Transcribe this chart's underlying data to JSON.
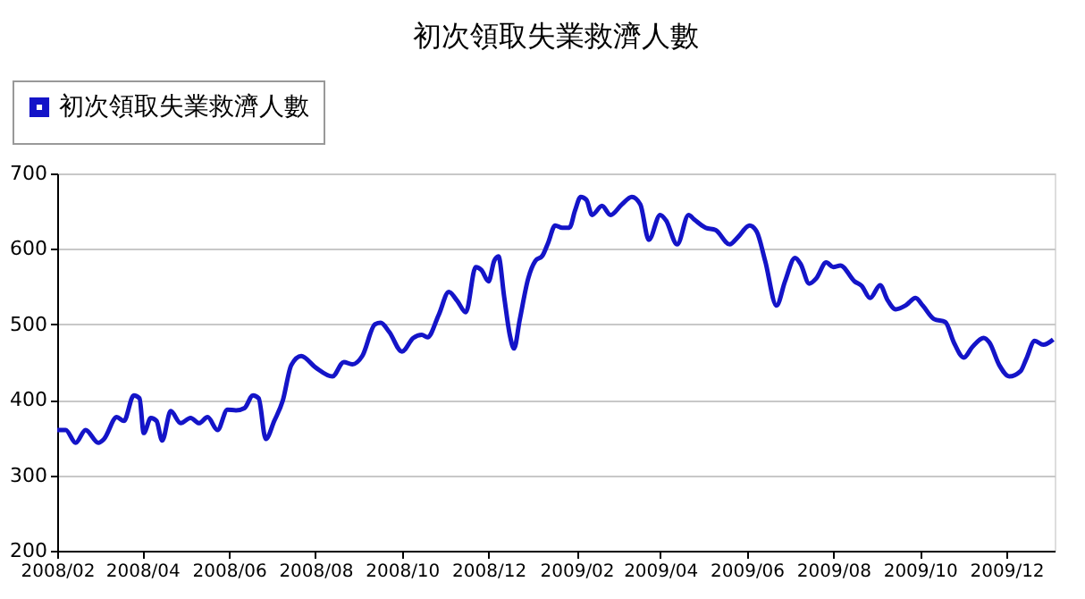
{
  "chart_data": {
    "type": "line",
    "title": "初次領取失業救濟人數",
    "x": [
      "2008-02-01",
      "2008-02-07",
      "2008-02-14",
      "2008-02-21",
      "2008-03-01",
      "2008-03-05",
      "2008-03-14",
      "2008-03-19",
      "2008-03-26",
      "2008-03-30",
      "2008-04-02",
      "2008-04-07",
      "2008-04-11",
      "2008-04-15",
      "2008-04-21",
      "2008-04-28",
      "2008-05-05",
      "2008-05-11",
      "2008-05-17",
      "2008-05-24",
      "2008-05-31",
      "2008-06-06",
      "2008-06-12",
      "2008-06-18",
      "2008-06-22",
      "2008-06-27",
      "2008-07-03",
      "2008-07-09",
      "2008-07-15",
      "2008-07-22",
      "2008-08-01",
      "2008-08-13",
      "2008-08-21",
      "2008-08-27",
      "2008-09-03",
      "2008-09-12",
      "2008-09-16",
      "2008-09-22",
      "2008-10-01",
      "2008-10-09",
      "2008-10-15",
      "2008-10-19",
      "2008-10-27",
      "2008-11-03",
      "2008-11-09",
      "2008-11-15",
      "2008-11-22",
      "2008-11-26",
      "2008-12-01",
      "2008-12-05",
      "2008-12-08",
      "2008-12-12",
      "2008-12-16",
      "2008-12-19",
      "2008-12-23",
      "2008-12-29",
      "2009-01-03",
      "2009-01-08",
      "2009-01-12",
      "2009-01-17",
      "2009-01-22",
      "2009-01-27",
      "2009-01-31",
      "2009-02-04",
      "2009-02-08",
      "2009-02-12",
      "2009-02-19",
      "2009-02-25",
      "2009-03-05",
      "2009-03-12",
      "2009-03-18",
      "2009-03-24",
      "2009-04-01",
      "2009-04-05",
      "2009-04-13",
      "2009-04-21",
      "2009-04-25",
      "2009-05-03",
      "2009-05-10",
      "2009-05-20",
      "2009-05-26",
      "2009-06-03",
      "2009-06-08",
      "2009-06-14",
      "2009-06-22",
      "2009-06-28",
      "2009-07-05",
      "2009-07-09",
      "2009-07-15",
      "2009-07-20",
      "2009-07-27",
      "2009-08-01",
      "2009-08-06",
      "2009-08-16",
      "2009-08-21",
      "2009-08-27",
      "2009-09-03",
      "2009-09-08",
      "2009-09-14",
      "2009-09-21",
      "2009-09-28",
      "2009-10-03",
      "2009-10-11",
      "2009-10-19",
      "2009-10-25",
      "2009-11-01",
      "2009-11-07",
      "2009-11-15",
      "2009-11-19",
      "2009-11-26",
      "2009-12-03",
      "2009-12-11",
      "2009-12-15",
      "2009-12-21",
      "2009-12-27",
      "2010-01-03"
    ],
    "series": [
      {
        "name": "初次領取失業救濟人數",
        "color": "#1414c8",
        "values": [
          360,
          360,
          343,
          360,
          343,
          348,
          377,
          372,
          406,
          402,
          356,
          376,
          372,
          346,
          385,
          369,
          376,
          369,
          377,
          360,
          387,
          386,
          389,
          406,
          402,
          348,
          372,
          399,
          446,
          458,
          443,
          431,
          450,
          447,
          458,
          500,
          502,
          490,
          464,
          482,
          486,
          483,
          513,
          543,
          531,
          516,
          576,
          572,
          557,
          584,
          590,
          537,
          486,
          468,
          506,
          561,
          584,
          591,
          608,
          631,
          628,
          628,
          651,
          669,
          665,
          645,
          657,
          645,
          659,
          669,
          659,
          612,
          645,
          638,
          606,
          645,
          639,
          628,
          625,
          606,
          616,
          631,
          623,
          584,
          525,
          557,
          588,
          580,
          554,
          561,
          582,
          576,
          578,
          557,
          551,
          535,
          552,
          533,
          520,
          525,
          535,
          525,
          507,
          503,
          476,
          456,
          470,
          482,
          476,
          446,
          431,
          438,
          454,
          478,
          473,
          480
        ]
      }
    ],
    "xlim": [
      "2008-02-01",
      "2010-01-04"
    ],
    "xticks": [
      {
        "value": "2008-02",
        "label": "2008/02"
      },
      {
        "value": "2008-04",
        "label": "2008/04"
      },
      {
        "value": "2008-06",
        "label": "2008/06"
      },
      {
        "value": "2008-08",
        "label": "2008/08"
      },
      {
        "value": "2008-10",
        "label": "2008/10"
      },
      {
        "value": "2008-12",
        "label": "2008/12"
      },
      {
        "value": "2009-02",
        "label": "2009/02"
      },
      {
        "value": "2009-04",
        "label": "2009/04"
      },
      {
        "value": "2009-06",
        "label": "2009/06"
      },
      {
        "value": "2009-08",
        "label": "2009/08"
      },
      {
        "value": "2009-10",
        "label": "2009/10"
      },
      {
        "value": "2009-12",
        "label": "2009/12"
      }
    ],
    "ylim": [
      200,
      700
    ],
    "yticks": [
      200,
      300,
      400,
      500,
      600,
      700
    ],
    "grid": "y",
    "legend": "top left",
    "marker": "none",
    "line_style": "solid"
  }
}
